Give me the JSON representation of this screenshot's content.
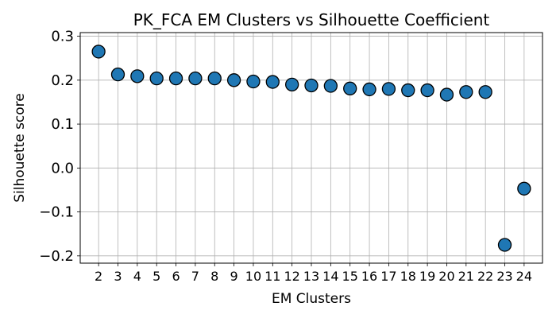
{
  "chart_data": {
    "type": "scatter",
    "title": "PK_FCA EM Clusters vs Silhouette Coefficient",
    "xlabel": "EM Clusters",
    "ylabel": "Silhouette score",
    "x": [
      2,
      3,
      4,
      5,
      6,
      7,
      8,
      9,
      10,
      11,
      12,
      13,
      14,
      15,
      16,
      17,
      18,
      19,
      20,
      21,
      22,
      23,
      24
    ],
    "y": [
      0.265,
      0.213,
      0.209,
      0.204,
      0.204,
      0.204,
      0.204,
      0.2,
      0.197,
      0.196,
      0.19,
      0.188,
      0.187,
      0.181,
      0.179,
      0.18,
      0.177,
      0.177,
      0.167,
      0.173,
      0.173,
      -0.175,
      -0.047
    ],
    "x_ticks": [
      "2",
      "3",
      "4",
      "5",
      "6",
      "7",
      "8",
      "9",
      "10",
      "11",
      "12",
      "13",
      "14",
      "15",
      "16",
      "17",
      "18",
      "19",
      "20",
      "21",
      "22",
      "23",
      "24"
    ],
    "y_ticks": [
      -0.2,
      -0.1,
      0.0,
      0.1,
      0.2,
      0.3
    ],
    "y_tick_labels": [
      "−0.2",
      "−0.1",
      "0.0",
      "0.1",
      "0.2",
      "0.3"
    ],
    "xlim": [
      1.05,
      24.95
    ],
    "ylim": [
      -0.2166,
      0.3083
    ],
    "grid": true,
    "marker_color": "#1f77b4",
    "marker_edge_color": "#000000"
  }
}
